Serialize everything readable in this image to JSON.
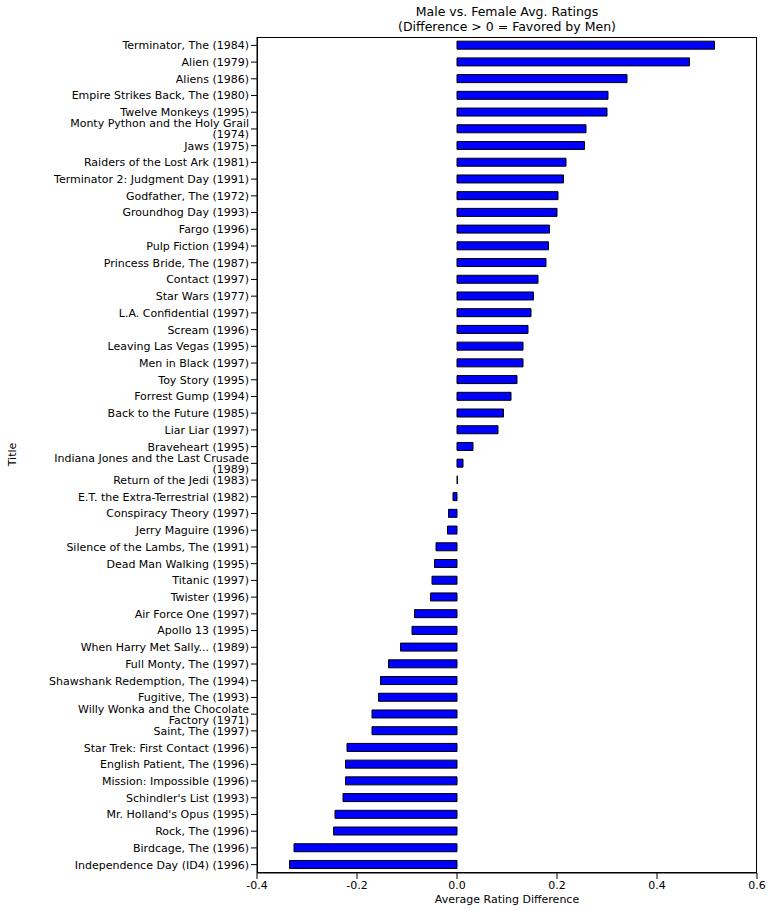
{
  "chart_data": {
    "type": "bar",
    "orientation": "horizontal",
    "title": "Male vs. Female Avg. Ratings\n(Difference > 0 = Favored by Men)",
    "x_label": "Average Rating Difference",
    "y_label": "Title",
    "categories": [
      "Terminator, The (1984)",
      "Alien (1979)",
      "Aliens (1986)",
      "Empire Strikes Back, The (1980)",
      "Twelve Monkeys (1995)",
      "Monty Python and the Holy Grail (1974)",
      "Jaws (1975)",
      "Raiders of the Lost Ark (1981)",
      "Terminator 2: Judgment Day (1991)",
      "Godfather, The (1972)",
      "Groundhog Day (1993)",
      "Fargo (1996)",
      "Pulp Fiction (1994)",
      "Princess Bride, The (1987)",
      "Contact (1997)",
      "Star Wars (1977)",
      "L.A. Confidential (1997)",
      "Scream (1996)",
      "Leaving Las Vegas (1995)",
      "Men in Black (1997)",
      "Toy Story (1995)",
      "Forrest Gump (1994)",
      "Back to the Future (1985)",
      "Liar Liar (1997)",
      "Braveheart (1995)",
      "Indiana Jones and the Last Crusade (1989)",
      "Return of the Jedi (1983)",
      "E.T. the Extra-Terrestrial (1982)",
      "Conspiracy Theory (1997)",
      "Jerry Maguire (1996)",
      "Silence of the Lambs, The (1991)",
      "Dead Man Walking (1995)",
      "Titanic (1997)",
      "Twister (1996)",
      "Air Force One (1997)",
      "Apollo 13 (1995)",
      "When Harry Met Sally... (1989)",
      "Full Monty, The (1997)",
      "Shawshank Redemption, The (1994)",
      "Fugitive, The (1993)",
      "Willy Wonka and the Chocolate Factory (1971)",
      "Saint, The (1997)",
      "Star Trek: First Contact (1996)",
      "English Patient, The (1996)",
      "Mission: Impossible (1996)",
      "Schindler's List (1993)",
      "Mr. Holland's Opus (1995)",
      "Rock, The (1996)",
      "Birdcage, The (1996)",
      "Independence Day (ID4) (1996)"
    ],
    "values": [
      0.515,
      0.465,
      0.34,
      0.302,
      0.3,
      0.258,
      0.255,
      0.218,
      0.213,
      0.202,
      0.2,
      0.185,
      0.183,
      0.178,
      0.162,
      0.153,
      0.148,
      0.142,
      0.132,
      0.132,
      0.12,
      0.108,
      0.093,
      0.082,
      0.032,
      0.012,
      0.001,
      -0.008,
      -0.017,
      -0.019,
      -0.042,
      -0.045,
      -0.05,
      -0.053,
      -0.085,
      -0.09,
      -0.113,
      -0.137,
      -0.153,
      -0.157,
      -0.17,
      -0.17,
      -0.22,
      -0.223,
      -0.223,
      -0.228,
      -0.244,
      -0.247,
      -0.326,
      -0.335
    ],
    "color": "#0000ff",
    "xlim": [
      -0.4,
      0.6
    ],
    "xticks": [
      -0.4,
      -0.2,
      {
        "value": 0,
        "label": "0.0"
      },
      0.2,
      0.4,
      0.6
    ],
    "grid": false
  }
}
